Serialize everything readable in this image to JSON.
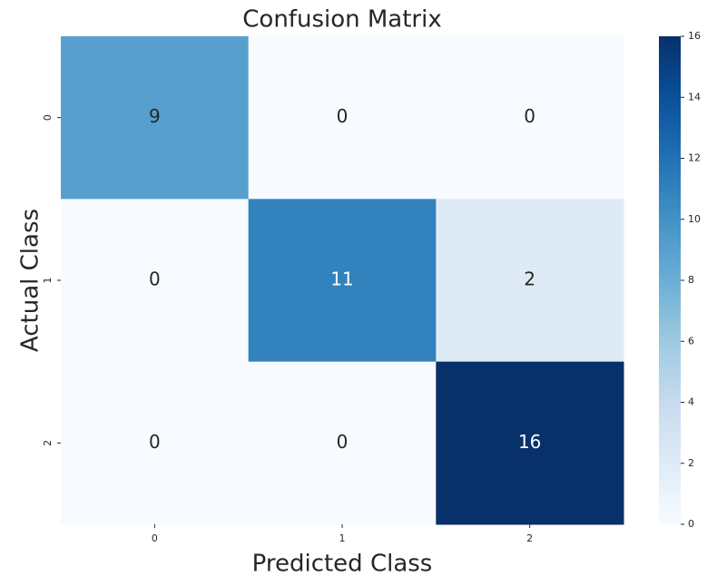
{
  "chart_data": {
    "type": "heatmap",
    "title": "Confusion Matrix",
    "xlabel": "Predicted Class",
    "ylabel": "Actual Class",
    "x_categories": [
      "0",
      "1",
      "2"
    ],
    "y_categories": [
      "0",
      "1",
      "2"
    ],
    "values": [
      [
        9,
        0,
        0
      ],
      [
        0,
        11,
        2
      ],
      [
        0,
        0,
        16
      ]
    ],
    "colormap": "Blues",
    "clim": [
      0,
      16
    ],
    "cticks": [
      0,
      2,
      4,
      6,
      8,
      10,
      12,
      14,
      16
    ]
  }
}
